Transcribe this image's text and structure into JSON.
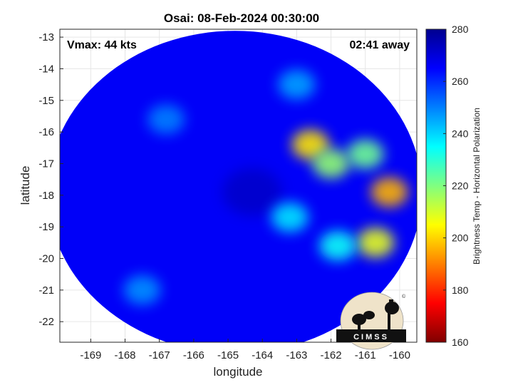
{
  "chart_data": {
    "type": "heatmap",
    "title": "Osai: 08-Feb-2024 00:30:00",
    "xlabel": "longitude",
    "ylabel": "latitude",
    "xlim": [
      -169.9,
      -159.5
    ],
    "ylim": [
      -22.65,
      -12.75
    ],
    "xticks": [
      -169,
      -168,
      -167,
      -166,
      -165,
      -164,
      -163,
      -162,
      -161,
      -160
    ],
    "yticks": [
      -13,
      -14,
      -15,
      -16,
      -17,
      -18,
      -19,
      -20,
      -21,
      -22
    ],
    "grid": true,
    "colorbar": {
      "label": "Brightness Temp - Horizontal Polarization",
      "range": [
        160,
        280
      ],
      "ticks": [
        280,
        260,
        240,
        220,
        200,
        180,
        160
      ],
      "colormap": "jet"
    },
    "annotations": {
      "vmax": "Vmax: 44 kts",
      "time_offset": "02:41 away"
    },
    "swath": {
      "center": [
        -164.8,
        -17.9
      ],
      "radius_lon": 5.45,
      "radius_lat": 5.1,
      "background_temp": 266
    },
    "features": [
      {
        "lon": -164.3,
        "lat": -17.9,
        "temp": 272
      },
      {
        "lon": -162.6,
        "lat": -16.4,
        "temp": 202
      },
      {
        "lon": -162.0,
        "lat": -17.0,
        "temp": 218
      },
      {
        "lon": -161.0,
        "lat": -16.7,
        "temp": 222
      },
      {
        "lon": -160.3,
        "lat": -17.9,
        "temp": 196
      },
      {
        "lon": -160.7,
        "lat": -19.5,
        "temp": 208
      },
      {
        "lon": -161.8,
        "lat": -19.6,
        "temp": 234
      },
      {
        "lon": -163.2,
        "lat": -18.7,
        "temp": 238
      },
      {
        "lon": -163.0,
        "lat": -14.5,
        "temp": 246
      },
      {
        "lon": -167.5,
        "lat": -21.0,
        "temp": 248
      },
      {
        "lon": -166.8,
        "lat": -15.6,
        "temp": 250
      }
    ]
  },
  "logo": {
    "text": "CIMSS"
  }
}
